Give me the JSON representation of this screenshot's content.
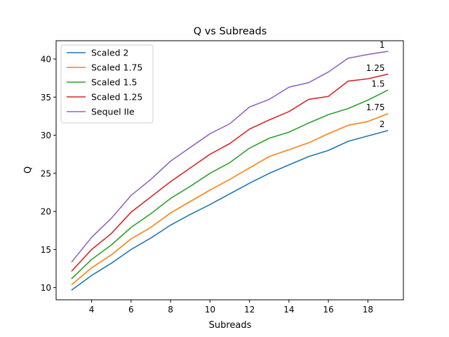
{
  "chart_data": {
    "type": "line",
    "title": "Q vs Subreads",
    "xlabel": "Subreads",
    "ylabel": "Q",
    "xlim": [
      2.2,
      19.8
    ],
    "ylim": [
      8.4,
      42.4
    ],
    "xticks": [
      4,
      6,
      8,
      10,
      12,
      14,
      16,
      18
    ],
    "yticks": [
      10,
      15,
      20,
      25,
      30,
      35,
      40
    ],
    "grid": false,
    "legend_position": "top-left",
    "x": [
      3,
      4,
      5,
      6,
      7,
      8,
      9,
      10,
      11,
      12,
      13,
      14,
      15,
      16,
      17,
      18,
      19
    ],
    "series": [
      {
        "name": "Scaled 2",
        "color": "#1f77b4",
        "end_label": "2",
        "values": [
          9.7,
          11.6,
          13.2,
          15.0,
          16.5,
          18.2,
          19.6,
          20.9,
          22.3,
          23.7,
          25.0,
          26.1,
          27.2,
          28.0,
          29.2,
          29.9,
          30.6
        ]
      },
      {
        "name": "Scaled 1.75",
        "color": "#ff7f0e",
        "end_label": "1.75",
        "values": [
          10.4,
          12.6,
          14.3,
          16.4,
          17.9,
          19.8,
          21.3,
          22.8,
          24.2,
          25.7,
          27.2,
          28.1,
          29.0,
          30.2,
          31.3,
          31.8,
          32.8
        ]
      },
      {
        "name": "Scaled 1.5",
        "color": "#2ca02c",
        "end_label": "1.5",
        "values": [
          11.2,
          13.7,
          15.6,
          17.9,
          19.7,
          21.7,
          23.3,
          25.0,
          26.4,
          28.3,
          29.6,
          30.4,
          31.6,
          32.7,
          33.5,
          34.6,
          35.9
        ]
      },
      {
        "name": "Scaled 1.25",
        "color": "#d62728",
        "end_label": "1.25",
        "values": [
          12.2,
          15.0,
          17.1,
          19.9,
          21.9,
          23.9,
          25.7,
          27.5,
          28.9,
          30.8,
          32.0,
          33.1,
          34.7,
          35.1,
          37.1,
          37.4,
          38.0
        ]
      },
      {
        "name": "Sequel IIe",
        "color": "#9467bd",
        "end_label": "1",
        "values": [
          13.4,
          16.6,
          19.1,
          22.1,
          24.2,
          26.6,
          28.4,
          30.2,
          31.5,
          33.7,
          34.7,
          36.3,
          36.9,
          38.3,
          40.1,
          40.6,
          41.0
        ]
      }
    ]
  }
}
